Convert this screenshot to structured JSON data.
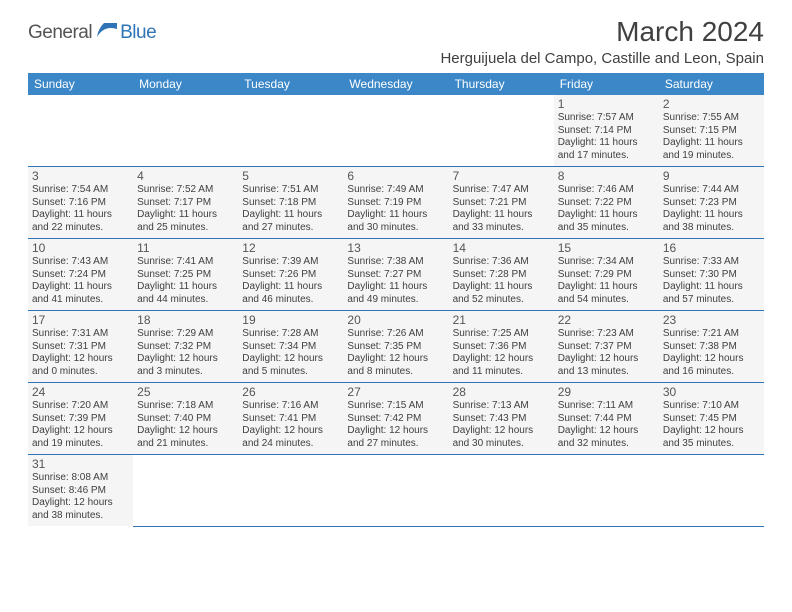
{
  "logo": {
    "general": "General",
    "blue": "Blue"
  },
  "header": {
    "title": "March 2024",
    "location": "Herguijuela del Campo, Castille and Leon, Spain"
  },
  "colors": {
    "header_bg": "#3b87c8",
    "header_text": "#ffffff",
    "cell_bg": "#f5f5f5",
    "border": "#2f74b5",
    "text": "#404040",
    "logo_blue": "#2f74b5"
  },
  "dayHeaders": [
    "Sunday",
    "Monday",
    "Tuesday",
    "Wednesday",
    "Thursday",
    "Friday",
    "Saturday"
  ],
  "weeks": [
    [
      null,
      null,
      null,
      null,
      null,
      {
        "n": "1",
        "sr": "7:57 AM",
        "ss": "7:14 PM",
        "dl": "11 hours and 17 minutes."
      },
      {
        "n": "2",
        "sr": "7:55 AM",
        "ss": "7:15 PM",
        "dl": "11 hours and 19 minutes."
      }
    ],
    [
      {
        "n": "3",
        "sr": "7:54 AM",
        "ss": "7:16 PM",
        "dl": "11 hours and 22 minutes."
      },
      {
        "n": "4",
        "sr": "7:52 AM",
        "ss": "7:17 PM",
        "dl": "11 hours and 25 minutes."
      },
      {
        "n": "5",
        "sr": "7:51 AM",
        "ss": "7:18 PM",
        "dl": "11 hours and 27 minutes."
      },
      {
        "n": "6",
        "sr": "7:49 AM",
        "ss": "7:19 PM",
        "dl": "11 hours and 30 minutes."
      },
      {
        "n": "7",
        "sr": "7:47 AM",
        "ss": "7:21 PM",
        "dl": "11 hours and 33 minutes."
      },
      {
        "n": "8",
        "sr": "7:46 AM",
        "ss": "7:22 PM",
        "dl": "11 hours and 35 minutes."
      },
      {
        "n": "9",
        "sr": "7:44 AM",
        "ss": "7:23 PM",
        "dl": "11 hours and 38 minutes."
      }
    ],
    [
      {
        "n": "10",
        "sr": "7:43 AM",
        "ss": "7:24 PM",
        "dl": "11 hours and 41 minutes."
      },
      {
        "n": "11",
        "sr": "7:41 AM",
        "ss": "7:25 PM",
        "dl": "11 hours and 44 minutes."
      },
      {
        "n": "12",
        "sr": "7:39 AM",
        "ss": "7:26 PM",
        "dl": "11 hours and 46 minutes."
      },
      {
        "n": "13",
        "sr": "7:38 AM",
        "ss": "7:27 PM",
        "dl": "11 hours and 49 minutes."
      },
      {
        "n": "14",
        "sr": "7:36 AM",
        "ss": "7:28 PM",
        "dl": "11 hours and 52 minutes."
      },
      {
        "n": "15",
        "sr": "7:34 AM",
        "ss": "7:29 PM",
        "dl": "11 hours and 54 minutes."
      },
      {
        "n": "16",
        "sr": "7:33 AM",
        "ss": "7:30 PM",
        "dl": "11 hours and 57 minutes."
      }
    ],
    [
      {
        "n": "17",
        "sr": "7:31 AM",
        "ss": "7:31 PM",
        "dl": "12 hours and 0 minutes."
      },
      {
        "n": "18",
        "sr": "7:29 AM",
        "ss": "7:32 PM",
        "dl": "12 hours and 3 minutes."
      },
      {
        "n": "19",
        "sr": "7:28 AM",
        "ss": "7:34 PM",
        "dl": "12 hours and 5 minutes."
      },
      {
        "n": "20",
        "sr": "7:26 AM",
        "ss": "7:35 PM",
        "dl": "12 hours and 8 minutes."
      },
      {
        "n": "21",
        "sr": "7:25 AM",
        "ss": "7:36 PM",
        "dl": "12 hours and 11 minutes."
      },
      {
        "n": "22",
        "sr": "7:23 AM",
        "ss": "7:37 PM",
        "dl": "12 hours and 13 minutes."
      },
      {
        "n": "23",
        "sr": "7:21 AM",
        "ss": "7:38 PM",
        "dl": "12 hours and 16 minutes."
      }
    ],
    [
      {
        "n": "24",
        "sr": "7:20 AM",
        "ss": "7:39 PM",
        "dl": "12 hours and 19 minutes."
      },
      {
        "n": "25",
        "sr": "7:18 AM",
        "ss": "7:40 PM",
        "dl": "12 hours and 21 minutes."
      },
      {
        "n": "26",
        "sr": "7:16 AM",
        "ss": "7:41 PM",
        "dl": "12 hours and 24 minutes."
      },
      {
        "n": "27",
        "sr": "7:15 AM",
        "ss": "7:42 PM",
        "dl": "12 hours and 27 minutes."
      },
      {
        "n": "28",
        "sr": "7:13 AM",
        "ss": "7:43 PM",
        "dl": "12 hours and 30 minutes."
      },
      {
        "n": "29",
        "sr": "7:11 AM",
        "ss": "7:44 PM",
        "dl": "12 hours and 32 minutes."
      },
      {
        "n": "30",
        "sr": "7:10 AM",
        "ss": "7:45 PM",
        "dl": "12 hours and 35 minutes."
      }
    ],
    [
      {
        "n": "31",
        "sr": "8:08 AM",
        "ss": "8:46 PM",
        "dl": "12 hours and 38 minutes."
      },
      null,
      null,
      null,
      null,
      null,
      null
    ]
  ],
  "labels": {
    "sunrise": "Sunrise:",
    "sunset": "Sunset:",
    "daylight": "Daylight:"
  }
}
